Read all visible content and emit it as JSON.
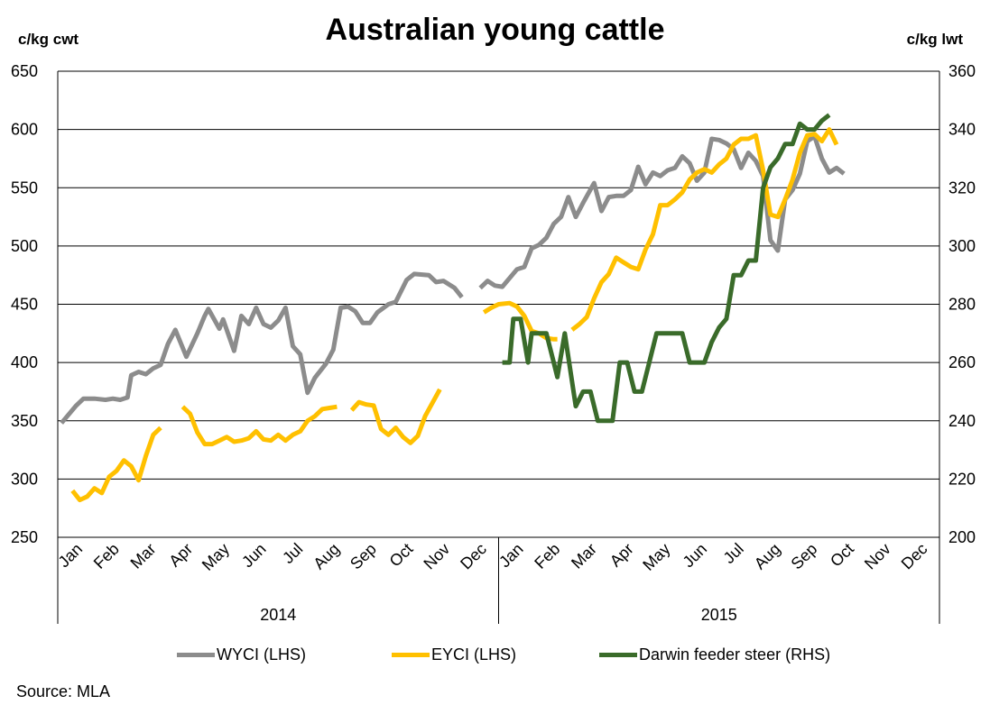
{
  "title": "Australian young cattle",
  "left_unit": "c/kg cwt",
  "right_unit": "c/kg lwt",
  "source": "Source: MLA",
  "colors": {
    "wyci": "#8c8c8c",
    "eyci": "#ffc000",
    "darwin": "#3a6b2a",
    "grid": "#000000"
  },
  "chart_data": {
    "type": "line",
    "title": "Australian young cattle",
    "y_left": {
      "label": "c/kg cwt",
      "range": [
        250,
        650
      ],
      "ticks": [
        250,
        300,
        350,
        400,
        450,
        500,
        550,
        600,
        650
      ]
    },
    "y_right": {
      "label": "c/kg lwt",
      "range": [
        200,
        360
      ],
      "ticks": [
        200,
        220,
        240,
        260,
        280,
        300,
        320,
        340,
        360
      ]
    },
    "x_months": [
      "Jan",
      "Feb",
      "Mar",
      "Apr",
      "May",
      "Jun",
      "Jul",
      "Aug",
      "Sep",
      "Oct",
      "Nov",
      "Dec"
    ],
    "x_years": [
      "2014",
      "2015"
    ],
    "grid": true,
    "legend_position": "bottom",
    "series": [
      {
        "name": "WYCI (LHS)",
        "axis": "left",
        "segments": [
          [
            [
              0.1,
              348
            ],
            [
              0.5,
              363
            ],
            [
              0.7,
              369
            ],
            [
              1.0,
              369
            ],
            [
              1.3,
              368
            ],
            [
              1.5,
              369
            ],
            [
              1.7,
              368
            ],
            [
              1.9,
              370
            ],
            [
              2.0,
              389
            ],
            [
              2.2,
              392
            ],
            [
              2.4,
              390
            ],
            [
              2.6,
              395
            ],
            [
              2.8,
              398
            ],
            [
              3.0,
              416
            ],
            [
              3.2,
              428
            ],
            [
              3.5,
              405
            ],
            [
              3.8,
              425
            ],
            [
              4.0,
              440
            ],
            [
              4.1,
              446
            ],
            [
              4.4,
              429
            ],
            [
              4.5,
              437
            ],
            [
              4.8,
              410
            ],
            [
              5.0,
              440
            ],
            [
              5.2,
              433
            ],
            [
              5.4,
              447
            ],
            [
              5.6,
              433
            ],
            [
              5.8,
              430
            ],
            [
              6.0,
              436
            ],
            [
              6.2,
              447
            ],
            [
              6.4,
              414
            ],
            [
              6.6,
              407
            ],
            [
              6.8,
              374
            ],
            [
              7.0,
              387
            ],
            [
              7.3,
              399
            ],
            [
              7.5,
              411
            ],
            [
              7.7,
              447
            ],
            [
              7.9,
              448
            ],
            [
              8.1,
              444
            ],
            [
              8.3,
              434
            ],
            [
              8.5,
              434
            ],
            [
              8.7,
              443
            ],
            [
              9.0,
              450
            ],
            [
              9.2,
              452
            ],
            [
              9.5,
              471
            ],
            [
              9.7,
              476
            ],
            [
              10.1,
              475
            ],
            [
              10.3,
              469
            ],
            [
              10.5,
              470
            ],
            [
              10.8,
              464
            ],
            [
              11.0,
              456
            ]
          ],
          [
            [
              11.5,
              464
            ],
            [
              11.7,
              470
            ],
            [
              11.9,
              466
            ],
            [
              12.1,
              465
            ],
            [
              12.5,
              480
            ],
            [
              12.7,
              482
            ],
            [
              12.9,
              498
            ],
            [
              13.1,
              501
            ],
            [
              13.3,
              507
            ],
            [
              13.5,
              519
            ],
            [
              13.7,
              525
            ],
            [
              13.9,
              542
            ],
            [
              14.1,
              525
            ],
            [
              14.3,
              537
            ],
            [
              14.6,
              554
            ],
            [
              14.8,
              530
            ],
            [
              15.0,
              542
            ],
            [
              15.2,
              543
            ],
            [
              15.4,
              543
            ],
            [
              15.6,
              548
            ],
            [
              15.8,
              568
            ],
            [
              16.0,
              553
            ],
            [
              16.2,
              563
            ],
            [
              16.4,
              560
            ],
            [
              16.6,
              565
            ],
            [
              16.8,
              567
            ],
            [
              17.0,
              577
            ],
            [
              17.2,
              571
            ],
            [
              17.4,
              556
            ],
            [
              17.6,
              563
            ],
            [
              17.8,
              592
            ],
            [
              18.0,
              591
            ],
            [
              18.2,
              588
            ],
            [
              18.4,
              583
            ],
            [
              18.6,
              567
            ],
            [
              18.8,
              580
            ],
            [
              19.0,
              573
            ],
            [
              19.2,
              560
            ],
            [
              19.4,
              505
            ],
            [
              19.6,
              496
            ],
            [
              19.8,
              540
            ],
            [
              20.0,
              548
            ],
            [
              20.2,
              562
            ],
            [
              20.4,
              590
            ],
            [
              20.6,
              594
            ],
            [
              20.8,
              575
            ],
            [
              21.0,
              563
            ],
            [
              21.2,
              567
            ],
            [
              21.4,
              562
            ]
          ]
        ]
      },
      {
        "name": "EYCI (LHS)",
        "axis": "left",
        "segments": [
          [
            [
              0.4,
              290
            ],
            [
              0.6,
              282
            ],
            [
              0.8,
              285
            ],
            [
              1.0,
              292
            ],
            [
              1.2,
              288
            ],
            [
              1.4,
              302
            ],
            [
              1.6,
              307
            ],
            [
              1.8,
              316
            ],
            [
              2.0,
              311
            ],
            [
              2.2,
              299
            ],
            [
              2.4,
              320
            ],
            [
              2.6,
              338
            ],
            [
              2.8,
              344
            ]
          ],
          [
            [
              3.4,
              362
            ],
            [
              3.6,
              356
            ],
            [
              3.8,
              340
            ],
            [
              4.0,
              330
            ],
            [
              4.2,
              330
            ],
            [
              4.4,
              333
            ],
            [
              4.6,
              336
            ],
            [
              4.8,
              332
            ],
            [
              5.0,
              333
            ],
            [
              5.2,
              335
            ],
            [
              5.4,
              341
            ],
            [
              5.6,
              334
            ],
            [
              5.8,
              333
            ],
            [
              6.0,
              338
            ],
            [
              6.2,
              333
            ],
            [
              6.4,
              338
            ],
            [
              6.6,
              341
            ],
            [
              6.8,
              350
            ],
            [
              7.0,
              354
            ],
            [
              7.2,
              360
            ],
            [
              7.4,
              361
            ],
            [
              7.6,
              362
            ]
          ],
          [
            [
              8.0,
              359
            ],
            [
              8.2,
              366
            ],
            [
              8.4,
              364
            ],
            [
              8.6,
              363
            ],
            [
              8.8,
              343
            ],
            [
              9.0,
              338
            ],
            [
              9.2,
              344
            ],
            [
              9.4,
              336
            ],
            [
              9.6,
              331
            ],
            [
              9.8,
              337
            ],
            [
              10.0,
              354
            ],
            [
              10.4,
              377
            ]
          ],
          [
            [
              11.6,
              443
            ],
            [
              11.8,
              447
            ],
            [
              12.0,
              450
            ],
            [
              12.3,
              451
            ],
            [
              12.5,
              448
            ],
            [
              12.7,
              440
            ],
            [
              12.9,
              427
            ],
            [
              13.1,
              425
            ],
            [
              13.3,
              421
            ],
            [
              13.5,
              420
            ],
            [
              13.6,
              420
            ]
          ],
          [
            [
              14.0,
              428
            ],
            [
              14.2,
              433
            ],
            [
              14.4,
              439
            ],
            [
              14.6,
              455
            ],
            [
              14.8,
              469
            ],
            [
              15.0,
              476
            ],
            [
              15.2,
              490
            ],
            [
              15.4,
              486
            ],
            [
              15.6,
              482
            ],
            [
              15.8,
              480
            ],
            [
              16.0,
              497
            ],
            [
              16.2,
              510
            ],
            [
              16.4,
              535
            ],
            [
              16.6,
              535
            ],
            [
              16.8,
              540
            ],
            [
              17.0,
              546
            ],
            [
              17.2,
              557
            ],
            [
              17.4,
              563
            ],
            [
              17.6,
              566
            ],
            [
              17.8,
              563
            ],
            [
              18.0,
              570
            ],
            [
              18.2,
              575
            ],
            [
              18.4,
              587
            ],
            [
              18.6,
              592
            ],
            [
              18.8,
              592
            ],
            [
              19.0,
              595
            ],
            [
              19.2,
              565
            ],
            [
              19.4,
              527
            ],
            [
              19.6,
              525
            ],
            [
              19.8,
              540
            ],
            [
              20.0,
              557
            ],
            [
              20.2,
              580
            ],
            [
              20.4,
              595
            ],
            [
              20.6,
              596
            ],
            [
              20.8,
              590
            ],
            [
              21.0,
              600
            ],
            [
              21.2,
              587
            ]
          ]
        ]
      },
      {
        "name": "Darwin feeder steer (RHS)",
        "axis": "right",
        "segments": [
          [
            [
              12.1,
              260
            ],
            [
              12.3,
              260
            ],
            [
              12.4,
              275
            ],
            [
              12.6,
              275
            ],
            [
              12.8,
              260
            ],
            [
              12.9,
              270
            ],
            [
              13.3,
              270
            ],
            [
              13.5,
              260
            ],
            [
              13.6,
              255
            ],
            [
              13.8,
              270
            ],
            [
              14.1,
              245
            ],
            [
              14.3,
              250
            ],
            [
              14.5,
              250
            ],
            [
              14.7,
              240
            ],
            [
              15.1,
              240
            ],
            [
              15.3,
              260
            ],
            [
              15.5,
              260
            ],
            [
              15.7,
              250
            ],
            [
              15.9,
              250
            ],
            [
              16.1,
              260
            ],
            [
              16.3,
              270
            ],
            [
              17.0,
              270
            ],
            [
              17.2,
              260
            ],
            [
              17.6,
              260
            ],
            [
              17.8,
              267
            ],
            [
              18.0,
              272
            ],
            [
              18.2,
              275
            ],
            [
              18.4,
              290
            ],
            [
              18.6,
              290
            ],
            [
              18.8,
              295
            ],
            [
              19.0,
              295
            ],
            [
              19.2,
              320
            ],
            [
              19.4,
              327
            ],
            [
              19.6,
              330
            ],
            [
              19.8,
              335
            ],
            [
              20.0,
              335
            ],
            [
              20.2,
              342
            ],
            [
              20.4,
              340
            ],
            [
              20.6,
              340
            ],
            [
              20.8,
              343
            ],
            [
              21.0,
              345
            ]
          ]
        ]
      }
    ]
  }
}
